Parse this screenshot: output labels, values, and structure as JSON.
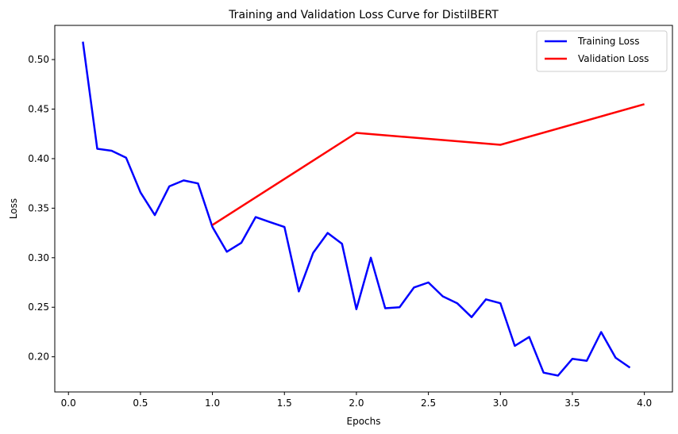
{
  "chart_data": {
    "type": "line",
    "title": "Training and Validation Loss Curve for DistilBERT",
    "xlabel": "Epochs",
    "ylabel": "Loss",
    "xlim": [
      -0.095,
      4.195
    ],
    "ylim": [
      0.1645,
      0.5345
    ],
    "xticks": [
      0.0,
      0.5,
      1.0,
      1.5,
      2.0,
      2.5,
      3.0,
      3.5,
      4.0
    ],
    "xtick_labels": [
      "0.0",
      "0.5",
      "1.0",
      "1.5",
      "2.0",
      "2.5",
      "3.0",
      "3.5",
      "4.0"
    ],
    "yticks": [
      0.2,
      0.25,
      0.3,
      0.35,
      0.4,
      0.45,
      0.5
    ],
    "ytick_labels": [
      "0.20",
      "0.25",
      "0.30",
      "0.35",
      "0.40",
      "0.45",
      "0.50"
    ],
    "grid": false,
    "legend_position": "top-right",
    "series": [
      {
        "name": "Training Loss",
        "color": "#0000ff",
        "x": [
          0.1,
          0.2,
          0.3,
          0.4,
          0.5,
          0.6,
          0.7,
          0.8,
          0.9,
          1.0,
          1.1,
          1.2,
          1.3,
          1.4,
          1.5,
          1.6,
          1.7,
          1.8,
          1.9,
          2.0,
          2.1,
          2.2,
          2.3,
          2.4,
          2.5,
          2.6,
          2.7,
          2.8,
          2.9,
          3.0,
          3.1,
          3.2,
          3.3,
          3.4,
          3.5,
          3.6,
          3.7,
          3.8,
          3.9
        ],
        "y": [
          0.518,
          0.41,
          0.408,
          0.401,
          0.366,
          0.343,
          0.372,
          0.378,
          0.375,
          0.331,
          0.306,
          0.315,
          0.341,
          0.336,
          0.331,
          0.266,
          0.305,
          0.325,
          0.314,
          0.248,
          0.3,
          0.249,
          0.25,
          0.27,
          0.275,
          0.261,
          0.254,
          0.24,
          0.258,
          0.254,
          0.211,
          0.22,
          0.184,
          0.181,
          0.198,
          0.196,
          0.225,
          0.199,
          0.189
        ]
      },
      {
        "name": "Validation Loss",
        "color": "#ff0000",
        "x": [
          1.0,
          2.0,
          3.0,
          4.0
        ],
        "y": [
          0.333,
          0.426,
          0.414,
          0.455
        ]
      }
    ]
  }
}
